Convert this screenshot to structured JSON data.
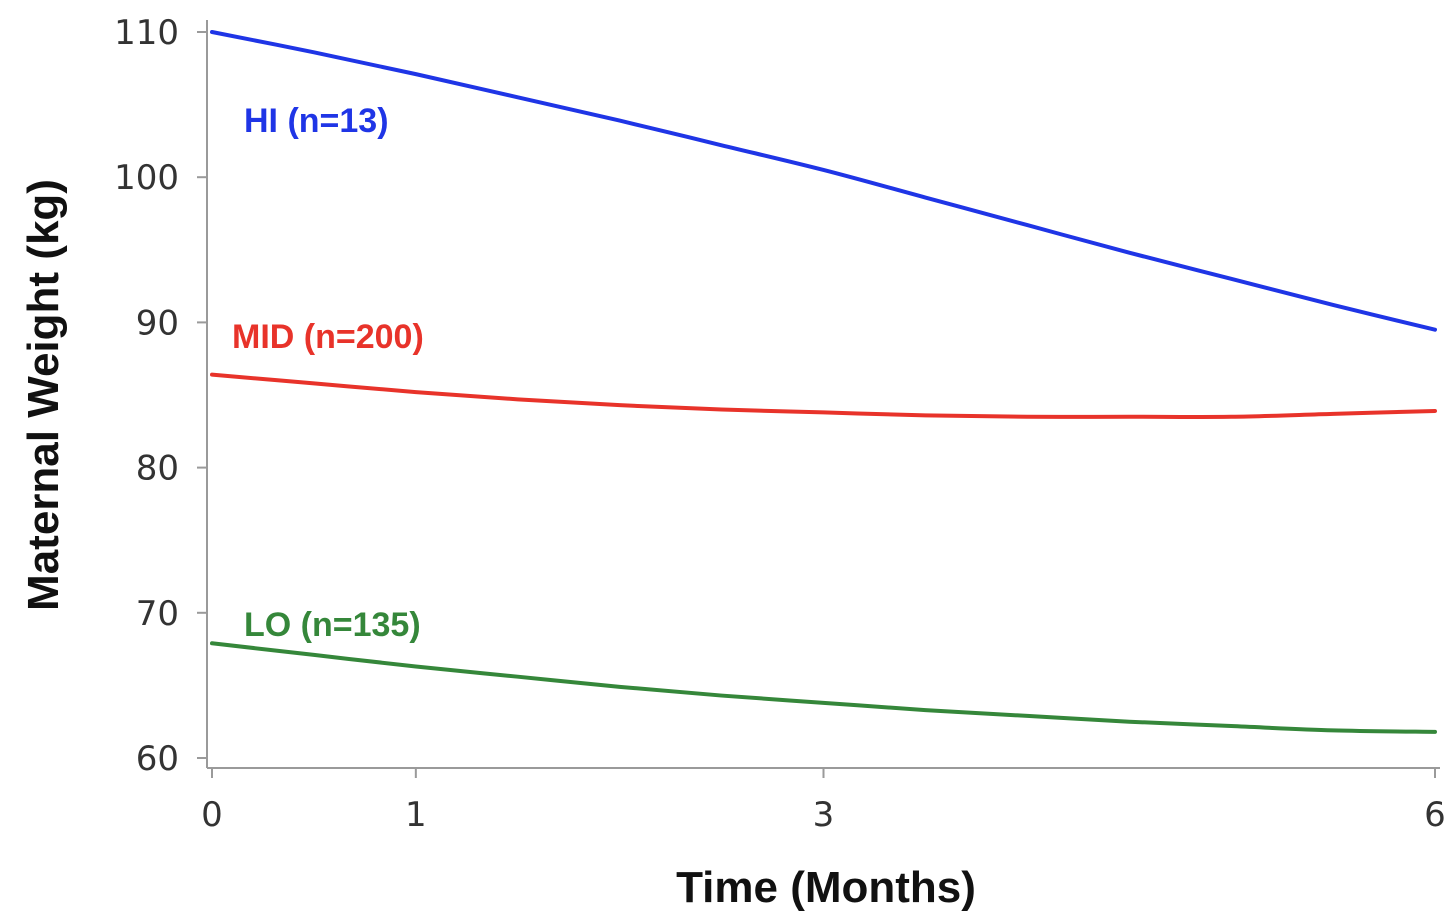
{
  "chart_data": {
    "type": "line",
    "title": "",
    "xlabel": "Time (Months)",
    "ylabel": "Maternal Weight (kg)",
    "xlim": [
      0,
      6
    ],
    "ylim": [
      60,
      110
    ],
    "x_ticks": [
      0,
      1,
      3,
      6
    ],
    "y_ticks": [
      60,
      70,
      80,
      90,
      100,
      110
    ],
    "grid": false,
    "legend": "none",
    "series": [
      {
        "name": "HI (n=13)",
        "color": "#1f35e6",
        "x": [
          0,
          0.5,
          1,
          1.5,
          2,
          2.5,
          3,
          3.5,
          4,
          4.5,
          5,
          5.5,
          6
        ],
        "y": [
          110.0,
          108.6,
          107.1,
          105.5,
          103.9,
          102.2,
          100.5,
          98.6,
          96.7,
          94.8,
          93.0,
          91.2,
          89.5
        ]
      },
      {
        "name": "MID (n=200)",
        "color": "#e8332a",
        "x": [
          0,
          0.5,
          1,
          1.5,
          2,
          2.5,
          3,
          3.5,
          4,
          4.5,
          5,
          5.5,
          6
        ],
        "y": [
          86.4,
          85.8,
          85.2,
          84.7,
          84.3,
          84.0,
          83.8,
          83.6,
          83.5,
          83.5,
          83.5,
          83.7,
          83.9
        ]
      },
      {
        "name": "LO (n=135)",
        "color": "#35873a",
        "x": [
          0,
          0.5,
          1,
          1.5,
          2,
          2.5,
          3,
          3.5,
          4,
          4.5,
          5,
          5.5,
          6
        ],
        "y": [
          67.9,
          67.1,
          66.3,
          65.6,
          64.9,
          64.3,
          63.8,
          63.3,
          62.9,
          62.5,
          62.2,
          61.9,
          61.8
        ]
      }
    ]
  }
}
